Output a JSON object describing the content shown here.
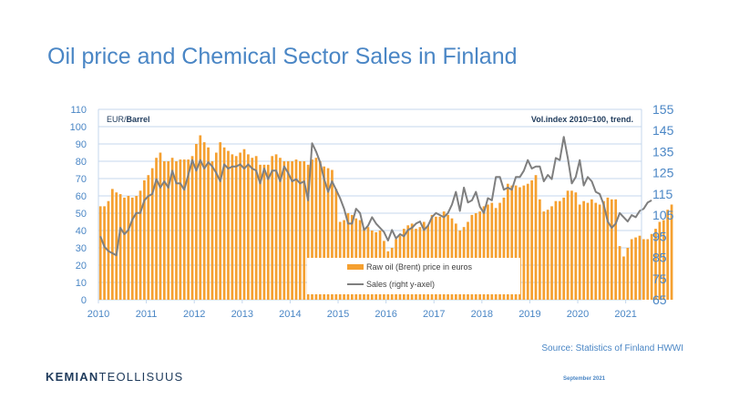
{
  "page": {
    "title": "Oil price and Chemical Sector Sales in Finland",
    "source": "Source: Statistics of Finland HWWI",
    "logo_bold": "KEMIAN",
    "logo_light": "TEOLLISUUS",
    "date": "September 2021"
  },
  "colors": {
    "title": "#4a86c5",
    "bars": "#f5a030",
    "line": "#7f7f7f",
    "axis_text": "#4a86c5",
    "grid": "#c5d7ec"
  },
  "chart_data": {
    "type": "bar+line",
    "left_axis_unit_plain": "EUR/",
    "left_axis_unit_bold": "Barrel",
    "right_axis_note": "Vol.index 2010=100, trend.",
    "x_ticks": [
      "2010",
      "2011",
      "2012",
      "2013",
      "2014",
      "2015",
      "2016",
      "2017",
      "2018",
      "2019",
      "2020",
      "2021"
    ],
    "x_range": [
      2010.0,
      2021.33
    ],
    "ylim_left": [
      0,
      110
    ],
    "yticks_left": [
      0,
      10,
      20,
      30,
      40,
      50,
      60,
      70,
      80,
      90,
      100,
      110
    ],
    "ylim_right": [
      65,
      155
    ],
    "yticks_right": [
      65,
      75,
      85,
      95,
      105,
      115,
      125,
      135,
      145,
      155
    ],
    "grid": true,
    "legend_position": "bottom-center",
    "series": [
      {
        "name": "Raw oil (Brent) price in euros",
        "kind": "bar",
        "axis": "left",
        "start": "2010-01",
        "values": [
          54,
          54,
          57,
          64,
          62,
          61,
          59,
          60,
          59,
          60,
          63,
          69,
          72,
          76,
          82,
          85,
          80,
          80,
          82,
          80,
          81,
          81,
          81,
          83,
          90,
          95,
          91,
          88,
          80,
          85,
          91,
          88,
          86,
          84,
          83,
          85,
          87,
          84,
          82,
          83,
          78,
          78,
          78,
          83,
          84,
          82,
          80,
          80,
          80,
          81,
          80,
          80,
          78,
          81,
          82,
          80,
          77,
          76,
          75,
          64,
          45,
          46,
          50,
          49,
          47,
          46,
          41,
          42,
          40,
          39,
          40,
          34,
          28,
          30,
          35,
          37,
          41,
          43,
          44,
          41,
          42,
          45,
          43,
          49,
          48,
          48,
          51,
          49,
          47,
          44,
          40,
          42,
          45,
          49,
          50,
          51,
          54,
          55,
          56,
          53,
          56,
          59,
          67,
          66,
          66,
          65,
          66,
          67,
          69,
          72,
          58,
          51,
          52,
          54,
          57,
          57,
          59,
          63,
          63,
          62,
          55,
          57,
          56,
          58,
          56,
          55,
          57,
          59,
          58,
          58,
          31,
          25,
          30,
          35,
          36,
          37,
          35,
          35,
          38,
          41,
          45,
          46,
          52,
          55
        ]
      },
      {
        "name": "Sales (right y-axel)",
        "kind": "line",
        "axis": "right",
        "start": "2010-01",
        "values": [
          95,
          90,
          88,
          87,
          86,
          99,
          96,
          98,
          103,
          106,
          106,
          112,
          114,
          115,
          122,
          118,
          121,
          118,
          126,
          120,
          120,
          117,
          124,
          131,
          126,
          131,
          127,
          130,
          128,
          125,
          121,
          129,
          127,
          128,
          128,
          129,
          127,
          129,
          127,
          126,
          120,
          127,
          122,
          126,
          126,
          121,
          128,
          125,
          121,
          122,
          120,
          121,
          112,
          139,
          135,
          130,
          122,
          116,
          121,
          117,
          113,
          108,
          101,
          101,
          108,
          106,
          98,
          100,
          104,
          101,
          99,
          97,
          93,
          98,
          94,
          96,
          95,
          98,
          99,
          101,
          102,
          98,
          100,
          104,
          106,
          105,
          104,
          106,
          110,
          116,
          107,
          118,
          111,
          112,
          116,
          109,
          106,
          113,
          112,
          123,
          123,
          117,
          118,
          117,
          123,
          123,
          126,
          131,
          127,
          128,
          128,
          121,
          124,
          122,
          132,
          131,
          142,
          132,
          120,
          123,
          131,
          119,
          123,
          121,
          116,
          115,
          110,
          102,
          99,
          101,
          106,
          104,
          102,
          105,
          104,
          107,
          108,
          111,
          112
        ]
      }
    ]
  }
}
